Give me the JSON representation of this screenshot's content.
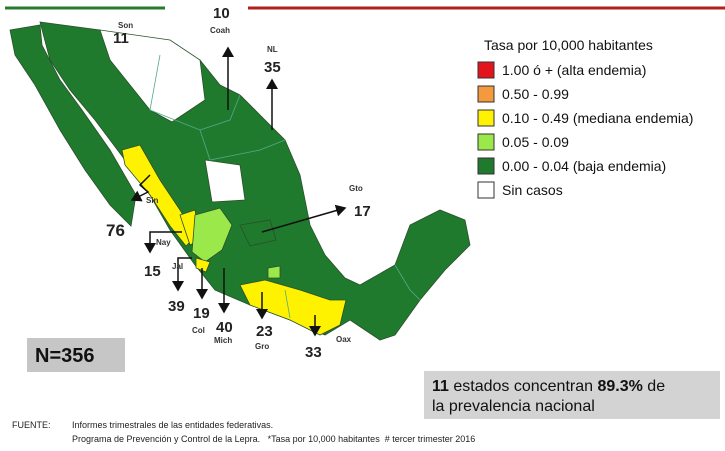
{
  "legend": {
    "title": "Tasa por 10,000  habitantes",
    "items": [
      {
        "label": "1.00  ó  + (alta endemia)",
        "color": "#e3141c"
      },
      {
        "label": "0.50 - 0.99",
        "color": "#f39a3e"
      },
      {
        "label": "0.10 - 0.49 (mediana endemia)",
        "color": "#fff200"
      },
      {
        "label": "0.05 - 0.09",
        "color": "#9be84a"
      },
      {
        "label": "0.00 - 0.04 (baja endemia)",
        "color": "#1f7a2e"
      },
      {
        "label": "Sin casos",
        "color": "#ffffff"
      }
    ]
  },
  "states": [
    {
      "abbr": "Son",
      "value": 11
    },
    {
      "abbr": "Coah",
      "value": 10
    },
    {
      "abbr": "NL",
      "value": 35
    },
    {
      "abbr": "Gto",
      "value": 17
    },
    {
      "abbr": "Sin",
      "value": 76
    },
    {
      "abbr": "Nay",
      "value": 15
    },
    {
      "abbr": "Jal",
      "value": 39
    },
    {
      "abbr": "Col",
      "value": 19
    },
    {
      "abbr": "Mich",
      "value": 40
    },
    {
      "abbr": "Gro",
      "value": 23
    },
    {
      "abbr": "Oax",
      "value": 33
    }
  ],
  "total": "N=356",
  "summary": {
    "line1": [
      "11",
      " estados concentran ",
      "89.3%",
      " de"
    ],
    "line2": "la prevalencia nacional"
  },
  "footer": {
    "label": "FUENTE:",
    "lines": [
      "Informes trimestrales de las entidades federativas.",
      "Programa de Prevención y Control de la Lepra.   *Tasa por 10,000 habitantes  # tercer trimester 2016"
    ]
  }
}
